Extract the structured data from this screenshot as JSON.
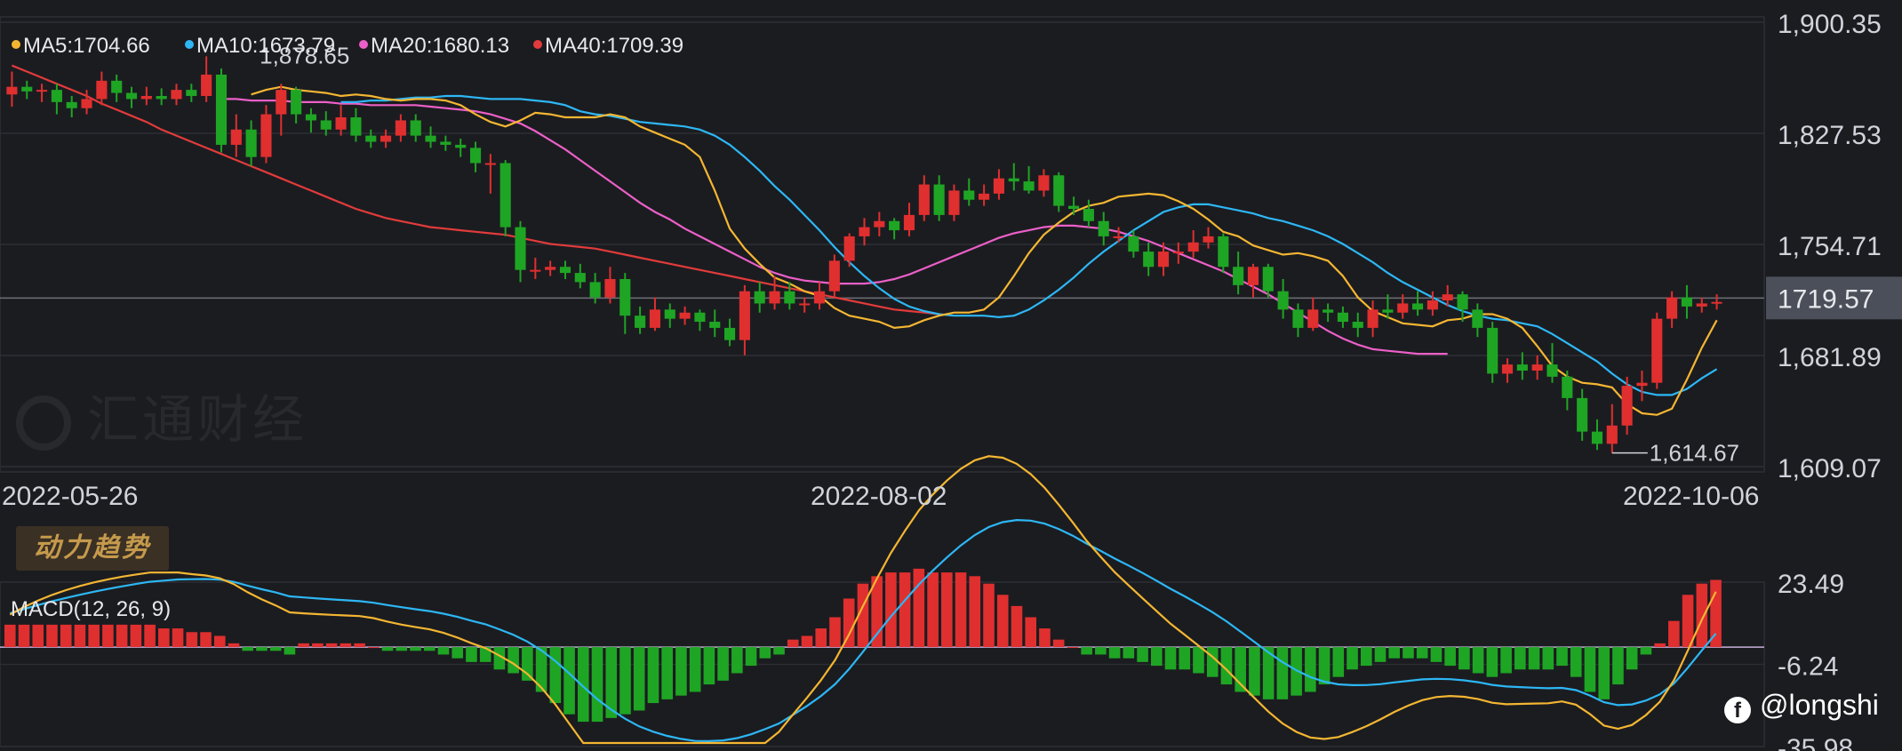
{
  "chart_data": [
    {
      "type": "candlestick",
      "ma_legend": [
        {
          "label": "MA5:1704.66",
          "color": "#f4b632"
        },
        {
          "label": "MA10:1673.79",
          "color": "#2db7f5"
        },
        {
          "label": "MA20:1680.13",
          "color": "#ec5fc8"
        },
        {
          "label": "MA40:1709.39",
          "color": "#e23b3b"
        }
      ],
      "y_ticks": [
        "1,900.35",
        "1,827.53",
        "1,754.71",
        "1,681.89",
        "1,609.07"
      ],
      "y_tick_values": [
        1900.35,
        1827.53,
        1754.71,
        1681.89,
        1609.07
      ],
      "ylim": [
        1609.07,
        1900.35
      ],
      "current_price": "1719.57",
      "current_price_value": 1719.57,
      "high_label": "1,878.65",
      "low_label": "1,614.67",
      "x_labels": [
        "2022-05-26",
        "2022-08-02",
        "2022-10-06"
      ],
      "ma5": [
        1853,
        1856,
        1858,
        1856,
        1855,
        1854,
        1852,
        1853,
        1852,
        1850,
        1849,
        1850,
        1850,
        1849,
        1846,
        1840,
        1835,
        1832,
        1836,
        1841,
        1840,
        1838,
        1838,
        1838,
        1840,
        1838,
        1832,
        1828,
        1824,
        1820,
        1812,
        1790,
        1765,
        1752,
        1742,
        1733,
        1729,
        1724,
        1721,
        1713,
        1708,
        1706,
        1704,
        1700,
        1701,
        1705,
        1708,
        1710,
        1710,
        1712,
        1720,
        1734,
        1749,
        1761,
        1769,
        1776,
        1780,
        1782,
        1786,
        1787,
        1788,
        1787,
        1783,
        1778,
        1771,
        1763,
        1760,
        1754,
        1751,
        1748,
        1749,
        1747,
        1744,
        1734,
        1720,
        1711,
        1707,
        1703,
        1702,
        1701,
        1705,
        1706,
        1709,
        1709,
        1706,
        1700,
        1688,
        1675,
        1668,
        1664,
        1663,
        1661,
        1650,
        1644,
        1643,
        1647,
        1666,
        1687,
        1705
      ],
      "ma10": [
        1848,
        1848,
        1849,
        1849,
        1850,
        1851,
        1851,
        1852,
        1852,
        1851,
        1850,
        1850,
        1850,
        1849,
        1848,
        1846,
        1842,
        1840,
        1839,
        1837,
        1835,
        1834,
        1833,
        1832,
        1830,
        1826,
        1820,
        1812,
        1803,
        1793,
        1784,
        1774,
        1764,
        1753,
        1743,
        1734,
        1726,
        1719,
        1714,
        1711,
        1709,
        1708,
        1708,
        1708,
        1707,
        1708,
        1712,
        1718,
        1725,
        1733,
        1742,
        1750,
        1757,
        1764,
        1770,
        1776,
        1779,
        1781,
        1781,
        1779,
        1777,
        1775,
        1772,
        1770,
        1767,
        1764,
        1760,
        1755,
        1749,
        1743,
        1736,
        1730,
        1725,
        1720,
        1715,
        1711,
        1708,
        1706,
        1705,
        1703,
        1701,
        1696,
        1690,
        1684,
        1678,
        1670,
        1663,
        1658,
        1656,
        1656,
        1660,
        1667,
        1673
      ],
      "ma20": [
        1850,
        1850,
        1849,
        1849,
        1849,
        1848,
        1848,
        1848,
        1847,
        1847,
        1846,
        1846,
        1846,
        1846,
        1845,
        1844,
        1843,
        1842,
        1840,
        1837,
        1834,
        1829,
        1823,
        1817,
        1810,
        1803,
        1796,
        1789,
        1782,
        1776,
        1771,
        1765,
        1760,
        1755,
        1750,
        1745,
        1740,
        1736,
        1733,
        1731,
        1730,
        1729,
        1729,
        1729,
        1730,
        1732,
        1735,
        1739,
        1743,
        1747,
        1751,
        1755,
        1759,
        1762,
        1764,
        1766,
        1767,
        1767,
        1766,
        1765,
        1763,
        1760,
        1757,
        1753,
        1749,
        1745,
        1741,
        1737,
        1732,
        1727,
        1722,
        1716,
        1710,
        1704,
        1698,
        1693,
        1689,
        1686,
        1685,
        1684,
        1683,
        1683,
        1683
      ],
      "ma40": [
        1872,
        1868,
        1864,
        1860,
        1856,
        1852,
        1847,
        1843,
        1839,
        1835,
        1830,
        1826,
        1822,
        1818,
        1814,
        1810,
        1806,
        1802,
        1798,
        1794,
        1790,
        1786,
        1782,
        1778,
        1775,
        1772,
        1770,
        1768,
        1766,
        1765,
        1764,
        1763,
        1762,
        1761,
        1759,
        1757,
        1755,
        1754,
        1753,
        1752,
        1750,
        1748,
        1746,
        1744,
        1742,
        1740,
        1738,
        1736,
        1734,
        1732,
        1730,
        1728,
        1726,
        1724,
        1722,
        1720,
        1718,
        1716,
        1714,
        1712,
        1711,
        1710,
        1709
      ],
      "candles": [
        [
          1853,
          1858,
          1868,
          1845
        ],
        [
          1858,
          1855,
          1862,
          1850
        ],
        [
          1855,
          1856,
          1860,
          1848
        ],
        [
          1856,
          1848,
          1860,
          1840
        ],
        [
          1848,
          1844,
          1852,
          1838
        ],
        [
          1844,
          1850,
          1856,
          1840
        ],
        [
          1850,
          1862,
          1868,
          1846
        ],
        [
          1862,
          1854,
          1866,
          1848
        ],
        [
          1854,
          1850,
          1858,
          1844
        ],
        [
          1850,
          1852,
          1858,
          1846
        ],
        [
          1852,
          1850,
          1857,
          1846
        ],
        [
          1850,
          1856,
          1860,
          1846
        ],
        [
          1856,
          1852,
          1860,
          1848
        ],
        [
          1852,
          1866,
          1878,
          1848
        ],
        [
          1866,
          1820,
          1870,
          1815
        ],
        [
          1820,
          1830,
          1840,
          1812
        ],
        [
          1830,
          1812,
          1836,
          1806
        ],
        [
          1812,
          1840,
          1846,
          1808
        ],
        [
          1840,
          1856,
          1860,
          1826
        ],
        [
          1856,
          1840,
          1858,
          1834
        ],
        [
          1840,
          1836,
          1844,
          1828
        ],
        [
          1836,
          1830,
          1842,
          1826
        ],
        [
          1830,
          1838,
          1846,
          1826
        ],
        [
          1838,
          1826,
          1844,
          1822
        ],
        [
          1826,
          1822,
          1830,
          1818
        ],
        [
          1822,
          1826,
          1830,
          1818
        ],
        [
          1826,
          1836,
          1840,
          1822
        ],
        [
          1836,
          1826,
          1840,
          1822
        ],
        [
          1826,
          1822,
          1832,
          1818
        ],
        [
          1822,
          1820,
          1826,
          1816
        ],
        [
          1820,
          1818,
          1824,
          1812
        ],
        [
          1818,
          1808,
          1822,
          1802
        ],
        [
          1808,
          1808,
          1814,
          1788
        ],
        [
          1808,
          1766,
          1810,
          1760
        ],
        [
          1766,
          1738,
          1770,
          1730
        ],
        [
          1738,
          1738,
          1746,
          1732
        ],
        [
          1738,
          1740,
          1744,
          1734
        ],
        [
          1740,
          1736,
          1744,
          1732
        ],
        [
          1736,
          1730,
          1742,
          1726
        ],
        [
          1730,
          1720,
          1736,
          1716
        ],
        [
          1720,
          1732,
          1740,
          1716
        ],
        [
          1732,
          1708,
          1736,
          1696
        ],
        [
          1708,
          1700,
          1714,
          1696
        ],
        [
          1700,
          1712,
          1720,
          1698
        ],
        [
          1712,
          1706,
          1716,
          1700
        ],
        [
          1706,
          1710,
          1714,
          1702
        ],
        [
          1710,
          1704,
          1712,
          1698
        ],
        [
          1704,
          1700,
          1712,
          1694
        ],
        [
          1700,
          1692,
          1706,
          1688
        ],
        [
          1692,
          1724,
          1728,
          1682
        ],
        [
          1724,
          1716,
          1730,
          1710
        ],
        [
          1716,
          1724,
          1734,
          1712
        ],
        [
          1724,
          1716,
          1730,
          1712
        ],
        [
          1716,
          1716,
          1720,
          1710
        ],
        [
          1716,
          1724,
          1730,
          1712
        ],
        [
          1724,
          1744,
          1748,
          1720
        ],
        [
          1744,
          1760,
          1762,
          1740
        ],
        [
          1760,
          1766,
          1772,
          1754
        ],
        [
          1766,
          1770,
          1776,
          1760
        ],
        [
          1770,
          1764,
          1772,
          1758
        ],
        [
          1764,
          1774,
          1782,
          1760
        ],
        [
          1774,
          1794,
          1800,
          1770
        ],
        [
          1794,
          1774,
          1800,
          1770
        ],
        [
          1774,
          1790,
          1794,
          1770
        ],
        [
          1790,
          1784,
          1798,
          1780
        ],
        [
          1784,
          1788,
          1794,
          1780
        ],
        [
          1788,
          1798,
          1804,
          1784
        ],
        [
          1798,
          1796,
          1808,
          1790
        ],
        [
          1796,
          1790,
          1806,
          1788
        ],
        [
          1790,
          1800,
          1804,
          1786
        ],
        [
          1800,
          1780,
          1802,
          1776
        ],
        [
          1780,
          1778,
          1786,
          1774
        ],
        [
          1778,
          1770,
          1784,
          1766
        ],
        [
          1770,
          1760,
          1776,
          1754
        ],
        [
          1760,
          1760,
          1766,
          1756
        ],
        [
          1760,
          1750,
          1764,
          1746
        ],
        [
          1750,
          1740,
          1756,
          1734
        ],
        [
          1740,
          1750,
          1756,
          1734
        ],
        [
          1750,
          1750,
          1756,
          1742
        ],
        [
          1750,
          1756,
          1764,
          1746
        ],
        [
          1756,
          1760,
          1766,
          1752
        ],
        [
          1760,
          1740,
          1762,
          1736
        ],
        [
          1740,
          1728,
          1750,
          1722
        ],
        [
          1728,
          1740,
          1742,
          1720
        ],
        [
          1740,
          1724,
          1742,
          1720
        ],
        [
          1724,
          1712,
          1732,
          1706
        ],
        [
          1712,
          1700,
          1716,
          1694
        ],
        [
          1700,
          1712,
          1720,
          1698
        ],
        [
          1712,
          1710,
          1716,
          1704
        ],
        [
          1710,
          1704,
          1714,
          1700
        ],
        [
          1704,
          1700,
          1710,
          1694
        ],
        [
          1700,
          1712,
          1718,
          1694
        ],
        [
          1712,
          1710,
          1722,
          1706
        ],
        [
          1710,
          1716,
          1722,
          1706
        ],
        [
          1716,
          1712,
          1724,
          1708
        ],
        [
          1712,
          1718,
          1724,
          1708
        ],
        [
          1718,
          1722,
          1728,
          1714
        ],
        [
          1722,
          1712,
          1724,
          1704
        ],
        [
          1712,
          1700,
          1716,
          1694
        ],
        [
          1700,
          1670,
          1704,
          1664
        ],
        [
          1670,
          1676,
          1680,
          1664
        ],
        [
          1676,
          1672,
          1684,
          1666
        ],
        [
          1672,
          1676,
          1682,
          1666
        ],
        [
          1676,
          1668,
          1690,
          1664
        ],
        [
          1668,
          1654,
          1672,
          1646
        ],
        [
          1654,
          1632,
          1660,
          1626
        ],
        [
          1632,
          1624,
          1640,
          1620
        ],
        [
          1624,
          1636,
          1650,
          1618
        ],
        [
          1636,
          1662,
          1668,
          1630
        ],
        [
          1662,
          1664,
          1672,
          1652
        ],
        [
          1664,
          1706,
          1710,
          1660
        ],
        [
          1706,
          1720,
          1724,
          1700
        ],
        [
          1720,
          1714,
          1728,
          1706
        ],
        [
          1714,
          1716,
          1720,
          1710
        ],
        [
          1716,
          1717,
          1722,
          1712
        ]
      ]
    },
    {
      "type": "macd",
      "title": "MACD(12, 26, 9)",
      "y_ticks": [
        "23.49",
        "-6.24",
        "-35.98"
      ],
      "y_tick_values": [
        23.49,
        -6.24,
        -35.98
      ],
      "ylim": [
        -35.98,
        23.49
      ],
      "histogram": [
        6,
        6,
        6,
        6,
        6,
        6,
        6,
        6,
        6,
        6,
        6,
        5,
        5,
        4,
        4,
        3,
        1,
        -1,
        -1,
        -1,
        -2,
        1,
        1,
        1,
        1,
        1,
        0,
        -1,
        -1,
        -1,
        -1,
        -2,
        -3,
        -4,
        -4,
        -6,
        -7,
        -9,
        -12,
        -15,
        -18,
        -20,
        -20,
        -19,
        -18,
        -17,
        -15,
        -14,
        -13,
        -12,
        -10,
        -9,
        -7,
        -5,
        -3,
        -2,
        2,
        3,
        5,
        8,
        13,
        17,
        19,
        20,
        20,
        21,
        20,
        20,
        20,
        19,
        17,
        14,
        11,
        8,
        5,
        2,
        0,
        -2,
        -2,
        -3,
        -3,
        -4,
        -5,
        -6,
        -6,
        -7,
        -8,
        -10,
        -12,
        -13,
        -14,
        -14,
        -13,
        -12,
        -10,
        -8,
        -6,
        -5,
        -4,
        -3,
        -3,
        -3,
        -4,
        -5,
        -6,
        -7,
        -8,
        -7,
        -6,
        -6,
        -6,
        -5,
        -8,
        -12,
        -14,
        -10,
        -6,
        -2,
        1,
        7,
        14,
        17,
        18
      ]
    }
  ],
  "brand_watermark": "汇通财经",
  "section_tag": "动力趋势",
  "user_watermark": "@longshi"
}
